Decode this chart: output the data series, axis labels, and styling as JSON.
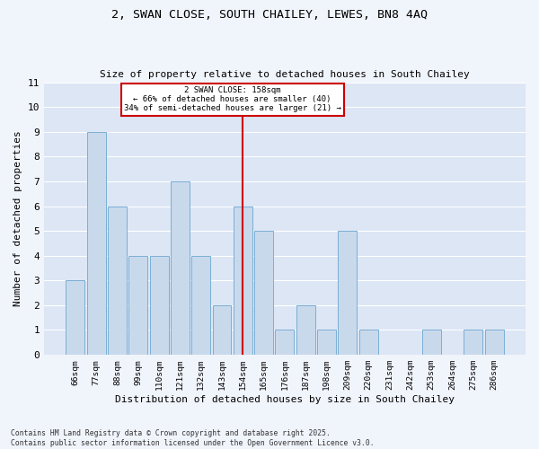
{
  "title_line1": "2, SWAN CLOSE, SOUTH CHAILEY, LEWES, BN8 4AQ",
  "title_line2": "Size of property relative to detached houses in South Chailey",
  "xlabel": "Distribution of detached houses by size in South Chailey",
  "ylabel": "Number of detached properties",
  "categories": [
    "66sqm",
    "77sqm",
    "88sqm",
    "99sqm",
    "110sqm",
    "121sqm",
    "132sqm",
    "143sqm",
    "154sqm",
    "165sqm",
    "176sqm",
    "187sqm",
    "198sqm",
    "209sqm",
    "220sqm",
    "231sqm",
    "242sqm",
    "253sqm",
    "264sqm",
    "275sqm",
    "286sqm"
  ],
  "values": [
    3,
    9,
    6,
    4,
    4,
    7,
    4,
    2,
    6,
    5,
    1,
    2,
    1,
    5,
    1,
    0,
    0,
    1,
    0,
    1,
    1
  ],
  "bar_color": "#c9d9ec",
  "bar_edge_color": "#7aafd4",
  "annotation_bar_index": 8,
  "annotation_text_line1": "2 SWAN CLOSE: 158sqm",
  "annotation_text_line2": "← 66% of detached houses are smaller (40)",
  "annotation_text_line3": "34% of semi-detached houses are larger (21) →",
  "vline_color": "#cc0000",
  "annotation_box_color": "#cc0000",
  "plot_bg_color": "#dce6f5",
  "fig_bg_color": "#f0f4fb",
  "grid_color": "#ffffff",
  "ylim": [
    0,
    11
  ],
  "yticks": [
    0,
    1,
    2,
    3,
    4,
    5,
    6,
    7,
    8,
    9,
    10,
    11
  ],
  "footer_line1": "Contains HM Land Registry data © Crown copyright and database right 2025.",
  "footer_line2": "Contains public sector information licensed under the Open Government Licence v3.0."
}
